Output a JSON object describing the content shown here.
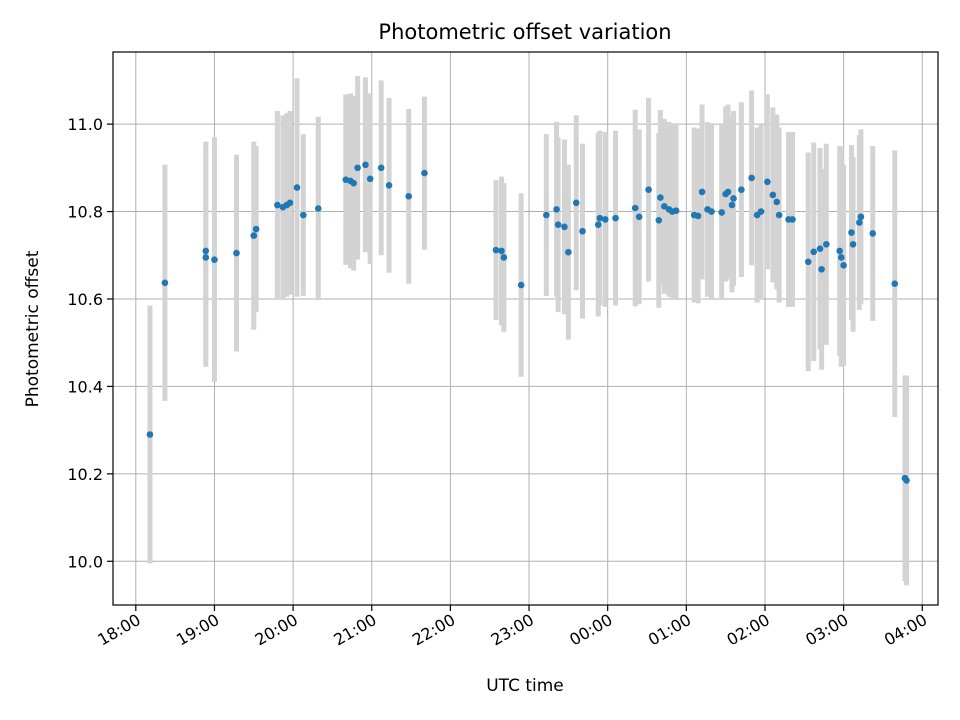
{
  "chart_data": {
    "type": "scatter",
    "title": "Photometric offset variation",
    "xlabel": "UTC time",
    "ylabel": "Photometric offset",
    "x_unit": "hours after 18:00 UTC",
    "xlim": [
      -0.29,
      10.2
    ],
    "ylim": [
      9.9,
      11.165
    ],
    "grid": true,
    "x_ticks": [
      {
        "v": 0,
        "label": "18:00"
      },
      {
        "v": 1,
        "label": "19:00"
      },
      {
        "v": 2,
        "label": "20:00"
      },
      {
        "v": 3,
        "label": "21:00"
      },
      {
        "v": 4,
        "label": "22:00"
      },
      {
        "v": 5,
        "label": "23:00"
      },
      {
        "v": 6,
        "label": "00:00"
      },
      {
        "v": 7,
        "label": "01:00"
      },
      {
        "v": 8,
        "label": "02:00"
      },
      {
        "v": 9,
        "label": "03:00"
      },
      {
        "v": 10,
        "label": "04:00"
      }
    ],
    "y_ticks": [
      {
        "v": 10.0,
        "label": "10.0"
      },
      {
        "v": 10.2,
        "label": "10.2"
      },
      {
        "v": 10.4,
        "label": "10.4"
      },
      {
        "v": 10.6,
        "label": "10.6"
      },
      {
        "v": 10.8,
        "label": "10.8"
      },
      {
        "v": 11.0,
        "label": "11.0"
      }
    ],
    "colors": {
      "point": "#1f77b4",
      "errorbar": "#d3d3d3",
      "grid": "#b0b0b0"
    },
    "series": [
      {
        "points": [
          [
            0.18,
            10.29,
            0.295
          ],
          [
            0.37,
            10.637,
            0.27
          ],
          [
            0.89,
            10.71,
            0.25
          ],
          [
            0.89,
            10.695,
            0.25
          ],
          [
            1.0,
            10.69,
            0.28
          ],
          [
            1.28,
            10.705,
            0.225
          ],
          [
            1.5,
            10.745,
            0.215
          ],
          [
            1.53,
            10.76,
            0.19
          ],
          [
            1.8,
            10.815,
            0.215
          ],
          [
            1.87,
            10.81,
            0.21
          ],
          [
            1.92,
            10.815,
            0.21
          ],
          [
            1.96,
            10.82,
            0.21
          ],
          [
            2.05,
            10.855,
            0.25
          ],
          [
            2.13,
            10.792,
            0.185
          ],
          [
            2.32,
            10.807,
            0.21
          ],
          [
            2.67,
            10.873,
            0.195
          ],
          [
            2.73,
            10.87,
            0.2
          ],
          [
            2.77,
            10.865,
            0.2
          ],
          [
            2.82,
            10.9,
            0.21
          ],
          [
            2.92,
            10.907,
            0.2
          ],
          [
            2.98,
            10.875,
            0.195
          ],
          [
            3.12,
            10.9,
            0.2
          ],
          [
            3.22,
            10.86,
            0.2
          ],
          [
            3.47,
            10.835,
            0.2
          ],
          [
            3.67,
            10.888,
            0.175
          ],
          [
            4.58,
            10.712,
            0.16
          ],
          [
            4.65,
            10.71,
            0.17
          ],
          [
            4.68,
            10.695,
            0.17
          ],
          [
            4.9,
            10.632,
            0.21
          ],
          [
            5.22,
            10.792,
            0.185
          ],
          [
            5.35,
            10.805,
            0.2
          ],
          [
            5.37,
            10.77,
            0.2
          ],
          [
            5.45,
            10.765,
            0.2
          ],
          [
            5.5,
            10.707,
            0.2
          ],
          [
            5.6,
            10.82,
            0.2
          ],
          [
            5.68,
            10.755,
            0.2
          ],
          [
            5.88,
            10.77,
            0.21
          ],
          [
            5.9,
            10.785,
            0.2
          ],
          [
            5.97,
            10.782,
            0.2
          ],
          [
            6.1,
            10.785,
            0.2
          ],
          [
            6.35,
            10.808,
            0.225
          ],
          [
            6.4,
            10.788,
            0.2
          ],
          [
            6.52,
            10.85,
            0.21
          ],
          [
            6.65,
            10.78,
            0.2
          ],
          [
            6.67,
            10.832,
            0.2
          ],
          [
            6.72,
            10.812,
            0.2
          ],
          [
            6.78,
            10.805,
            0.2
          ],
          [
            6.82,
            10.8,
            0.2
          ],
          [
            6.87,
            10.802,
            0.2
          ],
          [
            7.1,
            10.792,
            0.2
          ],
          [
            7.15,
            10.79,
            0.2
          ],
          [
            7.2,
            10.845,
            0.2
          ],
          [
            7.27,
            10.805,
            0.2
          ],
          [
            7.32,
            10.8,
            0.2
          ],
          [
            7.45,
            10.798,
            0.2
          ],
          [
            7.5,
            10.84,
            0.2
          ],
          [
            7.53,
            10.845,
            0.2
          ],
          [
            7.58,
            10.815,
            0.2
          ],
          [
            7.6,
            10.83,
            0.2
          ],
          [
            7.7,
            10.85,
            0.2
          ],
          [
            7.83,
            10.877,
            0.2
          ],
          [
            7.9,
            10.792,
            0.2
          ],
          [
            7.95,
            10.8,
            0.2
          ],
          [
            8.03,
            10.868,
            0.2
          ],
          [
            8.1,
            10.838,
            0.2
          ],
          [
            8.15,
            10.822,
            0.2
          ],
          [
            8.18,
            10.792,
            0.2
          ],
          [
            8.3,
            10.782,
            0.2
          ],
          [
            8.35,
            10.782,
            0.2
          ],
          [
            8.55,
            10.685,
            0.25
          ],
          [
            8.62,
            10.708,
            0.25
          ],
          [
            8.7,
            10.715,
            0.23
          ],
          [
            8.72,
            10.668,
            0.23
          ],
          [
            8.78,
            10.725,
            0.23
          ],
          [
            8.95,
            10.71,
            0.24
          ],
          [
            8.97,
            10.695,
            0.25
          ],
          [
            9.0,
            10.677,
            0.23
          ],
          [
            9.1,
            10.752,
            0.2
          ],
          [
            9.12,
            10.725,
            0.2
          ],
          [
            9.2,
            10.775,
            0.2
          ],
          [
            9.22,
            10.788,
            0.2
          ],
          [
            9.37,
            10.75,
            0.2
          ],
          [
            9.65,
            10.635,
            0.305
          ],
          [
            9.78,
            10.19,
            0.235
          ],
          [
            9.8,
            10.185,
            0.24
          ]
        ]
      }
    ]
  }
}
